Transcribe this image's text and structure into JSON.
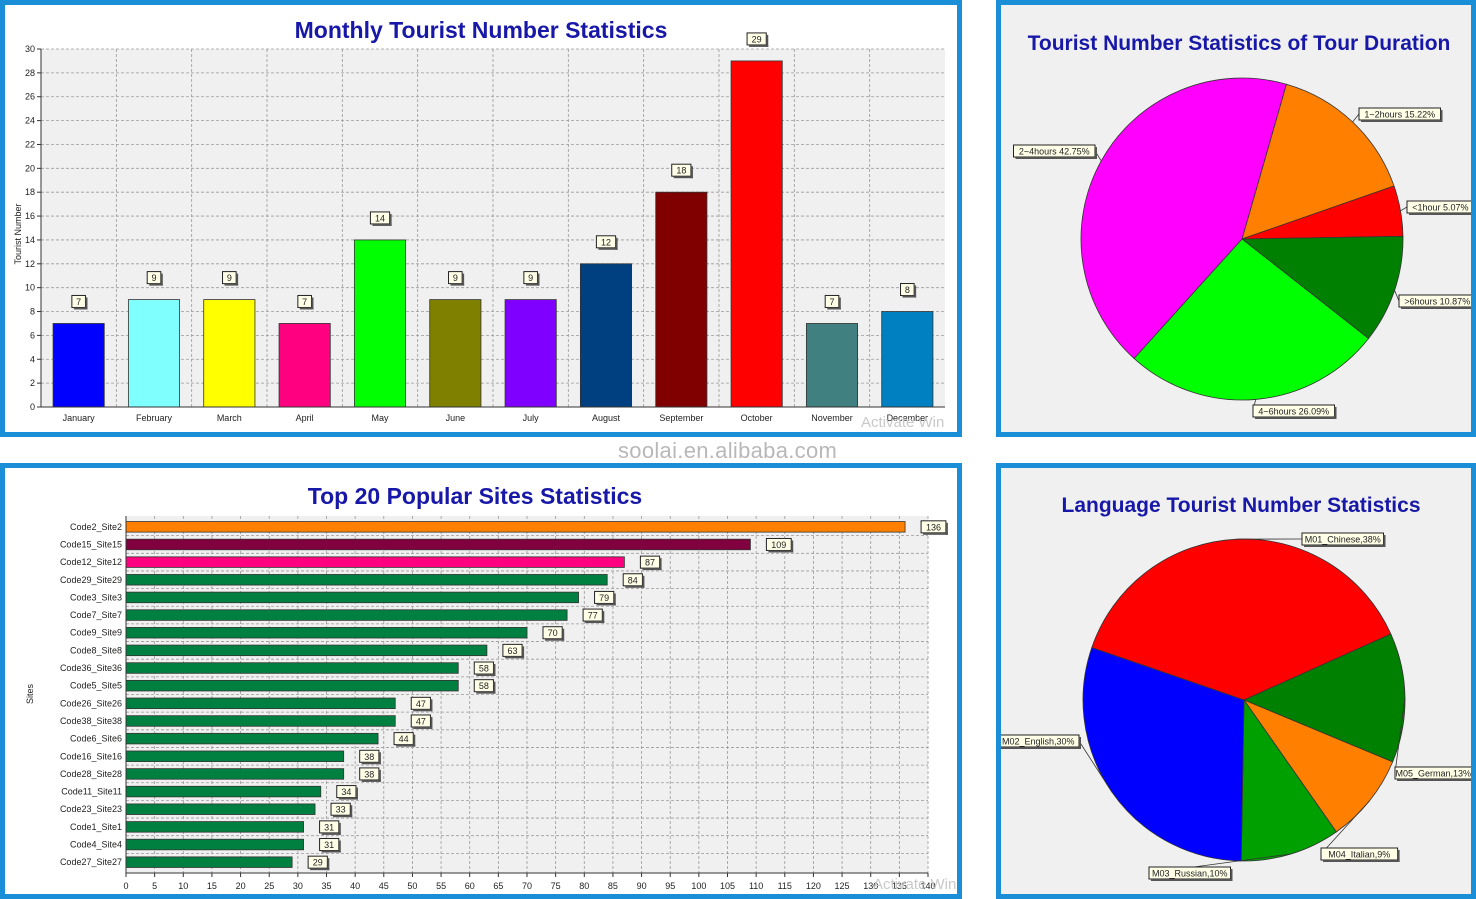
{
  "watermark": "soolai.en.alibaba.com",
  "overlay_text": "Activate Win",
  "colors": {
    "panel_border": "#1a8fd8",
    "title": "#1818a8"
  },
  "chart_data": [
    {
      "id": "monthly",
      "type": "bar",
      "title": "Monthly Tourist Number Statistics",
      "xlabel": "",
      "ylabel": "Tourist Number",
      "ylim": [
        0,
        30
      ],
      "yticks": [
        0,
        2,
        4,
        6,
        8,
        10,
        12,
        14,
        16,
        18,
        20,
        22,
        24,
        26,
        28,
        30
      ],
      "categories": [
        "January",
        "February",
        "March",
        "April",
        "May",
        "June",
        "July",
        "August",
        "September",
        "October",
        "November",
        "December"
      ],
      "values": [
        7,
        9,
        9,
        7,
        14,
        9,
        9,
        12,
        18,
        29,
        7,
        8
      ],
      "bar_colors": [
        "#0000ff",
        "#80ffff",
        "#ffff00",
        "#ff0080",
        "#00ff00",
        "#808000",
        "#8000ff",
        "#004080",
        "#800000",
        "#ff0000",
        "#408080",
        "#0080c0"
      ]
    },
    {
      "id": "duration",
      "type": "pie",
      "title": "Tourist Number Statistics of Tour Duration",
      "slices": [
        {
          "label": "1~2hours 15.22%",
          "value": 15.22,
          "color": "#ff8000"
        },
        {
          "label": "<1hour 5.07%",
          "value": 5.07,
          "color": "#ff0000"
        },
        {
          "label": ">6hours 10.87%",
          "value": 10.87,
          "color": "#008000"
        },
        {
          "label": "4~6hours 26.09%",
          "value": 26.09,
          "color": "#00ff00"
        },
        {
          "label": "2~4hours 42.75%",
          "value": 42.75,
          "color": "#ff00ff"
        }
      ]
    },
    {
      "id": "sites",
      "type": "bar",
      "orientation": "horizontal",
      "title": "Top 20 Popular Sites Statistics",
      "xlabel": "",
      "ylabel": "Sites",
      "xlim": [
        0,
        140
      ],
      "xticks": [
        0,
        5,
        10,
        15,
        20,
        25,
        30,
        35,
        40,
        45,
        50,
        55,
        60,
        65,
        70,
        75,
        80,
        85,
        90,
        95,
        100,
        105,
        110,
        115,
        120,
        125,
        130,
        135,
        140
      ],
      "categories": [
        "Code2_Site2",
        "Code15_Site15",
        "Code12_Site12",
        "Code29_Site29",
        "Code3_Site3",
        "Code7_Site7",
        "Code9_Site9",
        "Code8_Site8",
        "Code36_Site36",
        "Code5_Site5",
        "Code26_Site26",
        "Code38_Site38",
        "Code6_Site6",
        "Code16_Site16",
        "Code28_Site28",
        "Code11_Site11",
        "Code23_Site23",
        "Code1_Site1",
        "Code4_Site4",
        "Code27_Site27"
      ],
      "values": [
        136,
        109,
        87,
        84,
        79,
        77,
        70,
        63,
        58,
        58,
        47,
        47,
        44,
        38,
        38,
        34,
        33,
        31,
        31,
        29
      ],
      "bar_colors": [
        "#ff8000",
        "#800040",
        "#ff0080",
        "#008040",
        "#008040",
        "#008040",
        "#008040",
        "#008040",
        "#008040",
        "#008040",
        "#008040",
        "#008040",
        "#008040",
        "#008040",
        "#008040",
        "#008040",
        "#008040",
        "#008040",
        "#008040",
        "#008040"
      ]
    },
    {
      "id": "language",
      "type": "pie",
      "title": "Language Tourist Number Statistics",
      "slices": [
        {
          "label": "M01_Chinese,38%",
          "value": 38,
          "color": "#ff0000"
        },
        {
          "label": "M05_German,13%",
          "value": 13,
          "color": "#008000"
        },
        {
          "label": "M04_Italian,9%",
          "value": 9,
          "color": "#ff8000"
        },
        {
          "label": "M03_Russian,10%",
          "value": 10,
          "color": "#00a000"
        },
        {
          "label": "M02_English,30%",
          "value": 30,
          "color": "#0000ff"
        }
      ]
    }
  ]
}
